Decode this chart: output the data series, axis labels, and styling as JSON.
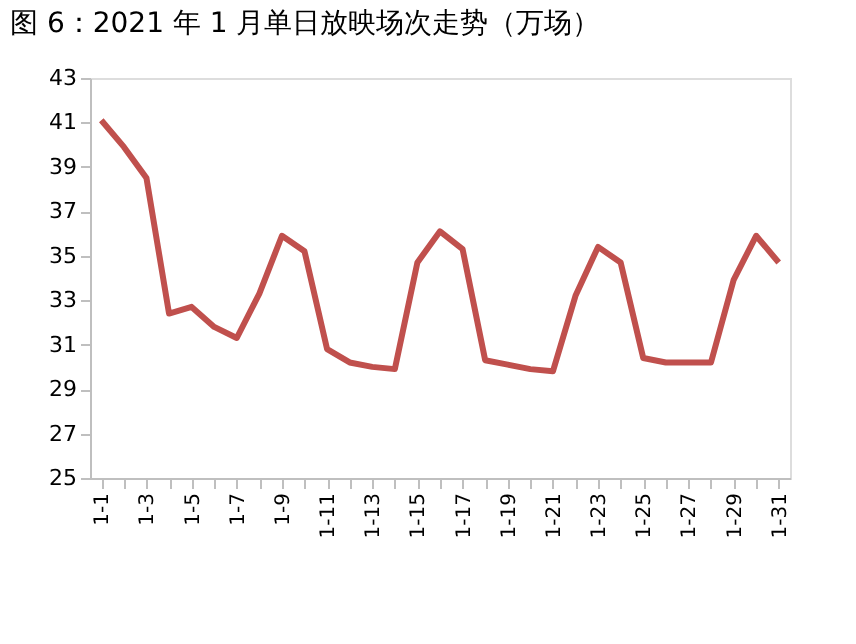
{
  "chart_data": {
    "type": "line",
    "title": "图 6：2021 年 1 月单日放映场次走势（万场）",
    "categories": [
      "1-1",
      null,
      "1-3",
      null,
      "1-5",
      null,
      "1-7",
      null,
      "1-9",
      null,
      "1-11",
      null,
      "1-13",
      null,
      "1-15",
      null,
      "1-17",
      null,
      "1-19",
      null,
      "1-21",
      null,
      "1-23",
      null,
      "1-25",
      null,
      "1-27",
      null,
      "1-29",
      null,
      "1-31"
    ],
    "series": [
      {
        "color": "#c0504d",
        "values": [
          41.1,
          39.9,
          38.5,
          32.4,
          32.7,
          31.8,
          31.3,
          33.3,
          35.9,
          35.2,
          30.8,
          30.2,
          30.0,
          29.9,
          34.7,
          36.1,
          35.3,
          30.3,
          30.1,
          29.9,
          29.8,
          33.2,
          35.4,
          34.7,
          30.4,
          30.2,
          30.2,
          30.2,
          33.9,
          35.9,
          34.7
        ]
      }
    ],
    "ylim": [
      25,
      43
    ],
    "yticks": [
      25,
      27,
      29,
      31,
      33,
      35,
      37,
      39,
      41,
      43
    ],
    "grid": false,
    "marker": "none",
    "line_style": "solid"
  }
}
